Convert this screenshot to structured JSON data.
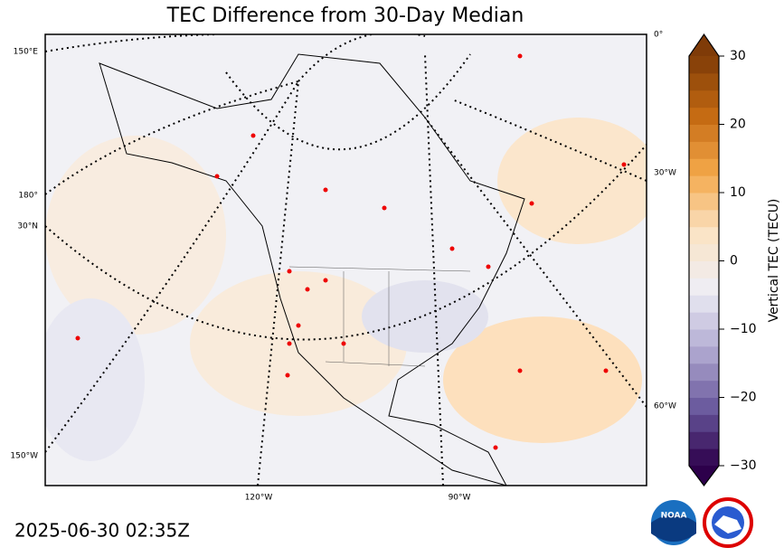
{
  "title": "TEC Difference from 30-Day Median",
  "timestamp": "2025-06-30 02:35Z",
  "map": {
    "left_labels": [
      "150°E",
      "180°",
      "30°N",
      "150°W"
    ],
    "bottom_labels": [
      "120°W",
      "90°W"
    ],
    "right_labels": [
      "0°",
      "30°W",
      "60°W"
    ]
  },
  "colorbar": {
    "label": "Vertical TEC (TECU)",
    "lim": [
      -30,
      30
    ],
    "ticks": [
      {
        "value": -30,
        "label": "−30"
      },
      {
        "value": -20,
        "label": "−20"
      },
      {
        "value": -10,
        "label": "−10"
      },
      0,
      10,
      20,
      30
    ],
    "colors": [
      "#2d004b",
      "#6a5a9e",
      "#b2abd2",
      "#eeeef5",
      "#fbe3c4",
      "#f4a84a",
      "#c46a12",
      "#7f3b08"
    ]
  }
}
